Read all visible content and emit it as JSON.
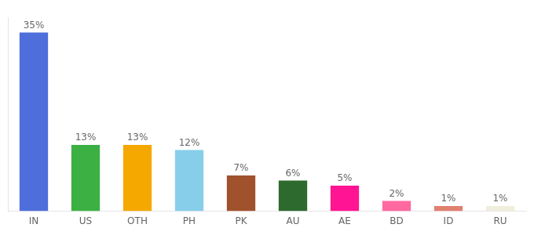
{
  "chart_data": {
    "type": "bar",
    "categories": [
      "IN",
      "US",
      "OTH",
      "PH",
      "PK",
      "AU",
      "AE",
      "BD",
      "ID",
      "RU"
    ],
    "values": [
      35,
      13,
      13,
      12,
      7,
      6,
      5,
      2,
      1,
      1
    ],
    "value_labels": [
      "35%",
      "13%",
      "13%",
      "12%",
      "7%",
      "6%",
      "5%",
      "2%",
      "1%",
      "1%"
    ],
    "colors": [
      "#4d6edb",
      "#3cb043",
      "#f5a800",
      "#87ceeb",
      "#a0522d",
      "#2d6a2d",
      "#ff1493",
      "#ff69a0",
      "#e08070",
      "#f0eedc"
    ],
    "ylim": [
      0,
      38
    ],
    "grid": false,
    "data_labels": true,
    "tick_labels": "x"
  }
}
